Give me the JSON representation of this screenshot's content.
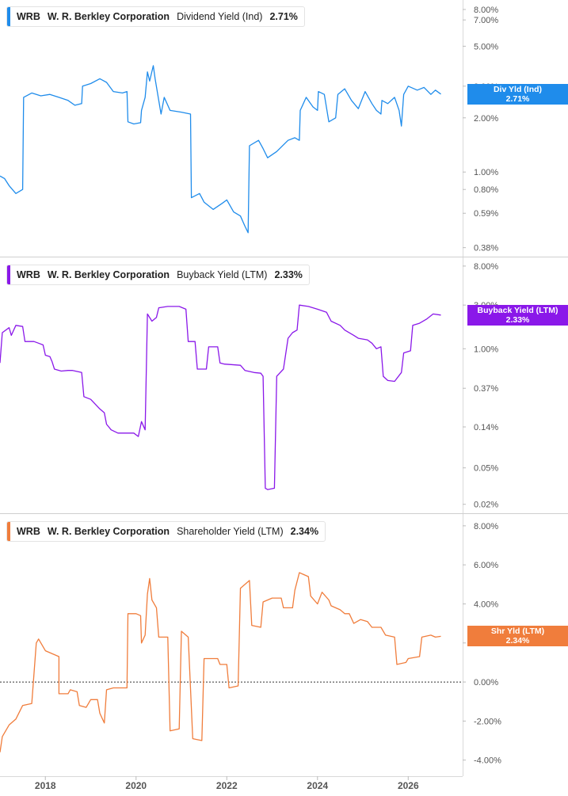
{
  "chart_data": [
    {
      "type": "line",
      "ticker": "WRB",
      "company": "W. R. Berkley Corporation",
      "metric": "Dividend Yield (Ind)",
      "last_value": "2.71%",
      "tag_label": "Div Yld (Ind)",
      "color": "#1f8ceb",
      "scale": "log",
      "ylim": [
        0.36,
        8.5
      ],
      "y_ticks": [
        {
          "v": 8.0,
          "label": "8.00%"
        },
        {
          "v": 7.0,
          "label": "7.00%"
        },
        {
          "v": 5.0,
          "label": "5.00%"
        },
        {
          "v": 3.0,
          "label": "3.00%"
        },
        {
          "v": 2.0,
          "label": "2.00%"
        },
        {
          "v": 1.0,
          "label": "1.00%"
        },
        {
          "v": 0.8,
          "label": "0.80%"
        },
        {
          "v": 0.59,
          "label": "0.59%"
        },
        {
          "v": 0.38,
          "label": "0.38%"
        }
      ],
      "points": [
        [
          2017.0,
          0.95
        ],
        [
          2017.1,
          0.92
        ],
        [
          2017.2,
          0.84
        ],
        [
          2017.35,
          0.76
        ],
        [
          2017.5,
          0.8
        ],
        [
          2017.52,
          2.6
        ],
        [
          2017.7,
          2.75
        ],
        [
          2017.9,
          2.65
        ],
        [
          2018.1,
          2.7
        ],
        [
          2018.3,
          2.6
        ],
        [
          2018.5,
          2.5
        ],
        [
          2018.65,
          2.35
        ],
        [
          2018.8,
          2.4
        ],
        [
          2018.82,
          3.0
        ],
        [
          2019.0,
          3.1
        ],
        [
          2019.2,
          3.3
        ],
        [
          2019.35,
          3.15
        ],
        [
          2019.5,
          2.8
        ],
        [
          2019.7,
          2.75
        ],
        [
          2019.8,
          2.8
        ],
        [
          2019.82,
          1.9
        ],
        [
          2019.95,
          1.85
        ],
        [
          2020.1,
          1.88
        ],
        [
          2020.12,
          2.2
        ],
        [
          2020.2,
          2.6
        ],
        [
          2020.25,
          3.6
        ],
        [
          2020.3,
          3.2
        ],
        [
          2020.38,
          3.9
        ],
        [
          2020.42,
          3.3
        ],
        [
          2020.5,
          2.5
        ],
        [
          2020.55,
          2.1
        ],
        [
          2020.62,
          2.6
        ],
        [
          2020.75,
          2.2
        ],
        [
          2021.0,
          2.15
        ],
        [
          2021.2,
          2.1
        ],
        [
          2021.22,
          0.72
        ],
        [
          2021.4,
          0.76
        ],
        [
          2021.5,
          0.68
        ],
        [
          2021.7,
          0.62
        ],
        [
          2021.9,
          0.67
        ],
        [
          2022.0,
          0.7
        ],
        [
          2022.15,
          0.6
        ],
        [
          2022.3,
          0.57
        ],
        [
          2022.4,
          0.5
        ],
        [
          2022.47,
          0.46
        ],
        [
          2022.5,
          1.4
        ],
        [
          2022.7,
          1.5
        ],
        [
          2022.8,
          1.35
        ],
        [
          2022.9,
          1.2
        ],
        [
          2023.1,
          1.3
        ],
        [
          2023.35,
          1.5
        ],
        [
          2023.5,
          1.55
        ],
        [
          2023.6,
          1.5
        ],
        [
          2023.62,
          2.2
        ],
        [
          2023.75,
          2.6
        ],
        [
          2023.9,
          2.3
        ],
        [
          2024.0,
          2.2
        ],
        [
          2024.02,
          2.8
        ],
        [
          2024.15,
          2.7
        ],
        [
          2024.25,
          1.9
        ],
        [
          2024.4,
          2.0
        ],
        [
          2024.45,
          2.7
        ],
        [
          2024.6,
          2.9
        ],
        [
          2024.75,
          2.5
        ],
        [
          2024.9,
          2.25
        ],
        [
          2025.05,
          2.8
        ],
        [
          2025.2,
          2.4
        ],
        [
          2025.3,
          2.2
        ],
        [
          2025.4,
          2.1
        ],
        [
          2025.42,
          2.5
        ],
        [
          2025.55,
          2.4
        ],
        [
          2025.7,
          2.6
        ],
        [
          2025.8,
          2.2
        ],
        [
          2025.85,
          1.8
        ],
        [
          2025.9,
          2.7
        ],
        [
          2026.0,
          3.0
        ],
        [
          2026.2,
          2.85
        ],
        [
          2026.35,
          2.95
        ],
        [
          2026.5,
          2.7
        ],
        [
          2026.6,
          2.85
        ],
        [
          2026.72,
          2.71
        ]
      ]
    },
    {
      "type": "line",
      "ticker": "WRB",
      "company": "W. R. Berkley Corporation",
      "metric": "Buyback Yield (LTM)",
      "last_value": "2.33%",
      "tag_label": "Buyback Yield (LTM)",
      "color": "#8a18e9",
      "scale": "log",
      "ylim": [
        0.018,
        9.0
      ],
      "y_ticks": [
        {
          "v": 8.0,
          "label": "8.00%"
        },
        {
          "v": 3.0,
          "label": "3.00%"
        },
        {
          "v": 1.0,
          "label": "1.00%"
        },
        {
          "v": 0.37,
          "label": "0.37%"
        },
        {
          "v": 0.14,
          "label": "0.14%"
        },
        {
          "v": 0.05,
          "label": "0.05%"
        },
        {
          "v": 0.02,
          "label": "0.02%"
        }
      ],
      "points": [
        [
          2017.0,
          0.7
        ],
        [
          2017.05,
          1.5
        ],
        [
          2017.2,
          1.7
        ],
        [
          2017.25,
          1.4
        ],
        [
          2017.35,
          1.8
        ],
        [
          2017.5,
          1.75
        ],
        [
          2017.55,
          1.2
        ],
        [
          2017.75,
          1.2
        ],
        [
          2017.85,
          1.15
        ],
        [
          2017.95,
          1.1
        ],
        [
          2018.0,
          0.85
        ],
        [
          2018.1,
          0.82
        ],
        [
          2018.15,
          0.72
        ],
        [
          2018.2,
          0.6
        ],
        [
          2018.35,
          0.57
        ],
        [
          2018.5,
          0.58
        ],
        [
          2018.6,
          0.58
        ],
        [
          2018.8,
          0.55
        ],
        [
          2018.85,
          0.3
        ],
        [
          2019.0,
          0.28
        ],
        [
          2019.2,
          0.22
        ],
        [
          2019.3,
          0.2
        ],
        [
          2019.35,
          0.15
        ],
        [
          2019.45,
          0.13
        ],
        [
          2019.6,
          0.12
        ],
        [
          2019.8,
          0.12
        ],
        [
          2019.95,
          0.12
        ],
        [
          2020.05,
          0.11
        ],
        [
          2020.12,
          0.16
        ],
        [
          2020.2,
          0.13
        ],
        [
          2020.25,
          2.4
        ],
        [
          2020.35,
          2.0
        ],
        [
          2020.45,
          2.2
        ],
        [
          2020.5,
          2.8
        ],
        [
          2020.7,
          2.9
        ],
        [
          2020.95,
          2.9
        ],
        [
          2021.1,
          2.7
        ],
        [
          2021.15,
          1.2
        ],
        [
          2021.3,
          1.2
        ],
        [
          2021.35,
          0.6
        ],
        [
          2021.55,
          0.6
        ],
        [
          2021.6,
          1.05
        ],
        [
          2021.8,
          1.05
        ],
        [
          2021.85,
          0.7
        ],
        [
          2021.95,
          0.68
        ],
        [
          2022.3,
          0.66
        ],
        [
          2022.4,
          0.58
        ],
        [
          2022.6,
          0.55
        ],
        [
          2022.75,
          0.54
        ],
        [
          2022.8,
          0.5
        ],
        [
          2022.85,
          0.03
        ],
        [
          2022.9,
          0.029
        ],
        [
          2023.05,
          0.03
        ],
        [
          2023.1,
          0.5
        ],
        [
          2023.25,
          0.6
        ],
        [
          2023.35,
          1.3
        ],
        [
          2023.45,
          1.5
        ],
        [
          2023.55,
          1.6
        ],
        [
          2023.6,
          3.0
        ],
        [
          2023.8,
          2.9
        ],
        [
          2024.0,
          2.7
        ],
        [
          2024.2,
          2.5
        ],
        [
          2024.3,
          2.0
        ],
        [
          2024.5,
          1.8
        ],
        [
          2024.6,
          1.6
        ],
        [
          2024.8,
          1.4
        ],
        [
          2024.9,
          1.3
        ],
        [
          2025.1,
          1.25
        ],
        [
          2025.2,
          1.15
        ],
        [
          2025.3,
          1.0
        ],
        [
          2025.4,
          1.05
        ],
        [
          2025.45,
          0.5
        ],
        [
          2025.55,
          0.45
        ],
        [
          2025.7,
          0.44
        ],
        [
          2025.85,
          0.55
        ],
        [
          2025.9,
          0.9
        ],
        [
          2026.05,
          0.95
        ],
        [
          2026.1,
          1.8
        ],
        [
          2026.25,
          1.9
        ],
        [
          2026.4,
          2.1
        ],
        [
          2026.55,
          2.4
        ],
        [
          2026.72,
          2.33
        ]
      ]
    },
    {
      "type": "line",
      "ticker": "WRB",
      "company": "W. R. Berkley Corporation",
      "metric": "Shareholder Yield (LTM)",
      "last_value": "2.34%",
      "tag_label": "Shr Yld (LTM)",
      "color": "#f07d3c",
      "scale": "linear",
      "ylim": [
        -4.5,
        8.4
      ],
      "zero_line": true,
      "y_ticks": [
        {
          "v": 8.0,
          "label": "8.00%"
        },
        {
          "v": 6.0,
          "label": "6.00%"
        },
        {
          "v": 4.0,
          "label": "4.00%"
        },
        {
          "v": 2.0,
          "label": "2.00%"
        },
        {
          "v": 0.0,
          "label": "0.00%"
        },
        {
          "v": -2.0,
          "label": "-2.00%"
        },
        {
          "v": -4.0,
          "label": "-4.00%"
        }
      ],
      "points": [
        [
          2017.0,
          -3.6
        ],
        [
          2017.05,
          -2.8
        ],
        [
          2017.2,
          -2.2
        ],
        [
          2017.35,
          -1.9
        ],
        [
          2017.5,
          -1.2
        ],
        [
          2017.7,
          -1.1
        ],
        [
          2017.8,
          2.0
        ],
        [
          2017.85,
          2.2
        ],
        [
          2018.0,
          1.6
        ],
        [
          2018.3,
          1.3
        ],
        [
          2018.3,
          -0.6
        ],
        [
          2018.5,
          -0.6
        ],
        [
          2018.55,
          -0.4
        ],
        [
          2018.7,
          -0.5
        ],
        [
          2018.75,
          -1.2
        ],
        [
          2018.9,
          -1.3
        ],
        [
          2019.0,
          -0.9
        ],
        [
          2019.15,
          -0.9
        ],
        [
          2019.2,
          -1.6
        ],
        [
          2019.3,
          -2.1
        ],
        [
          2019.35,
          -0.4
        ],
        [
          2019.5,
          -0.3
        ],
        [
          2019.6,
          -0.3
        ],
        [
          2019.8,
          -0.3
        ],
        [
          2019.82,
          3.5
        ],
        [
          2020.0,
          3.5
        ],
        [
          2020.1,
          3.4
        ],
        [
          2020.12,
          2.0
        ],
        [
          2020.2,
          2.4
        ],
        [
          2020.25,
          4.5
        ],
        [
          2020.3,
          5.3
        ],
        [
          2020.35,
          4.2
        ],
        [
          2020.45,
          3.8
        ],
        [
          2020.5,
          2.3
        ],
        [
          2020.7,
          2.3
        ],
        [
          2020.75,
          -2.5
        ],
        [
          2020.95,
          -2.4
        ],
        [
          2021.0,
          2.6
        ],
        [
          2021.15,
          2.3
        ],
        [
          2021.25,
          -2.9
        ],
        [
          2021.45,
          -3.0
        ],
        [
          2021.5,
          1.2
        ],
        [
          2021.8,
          1.2
        ],
        [
          2021.85,
          0.9
        ],
        [
          2022.0,
          0.9
        ],
        [
          2022.05,
          -0.3
        ],
        [
          2022.25,
          -0.2
        ],
        [
          2022.3,
          4.8
        ],
        [
          2022.5,
          5.2
        ],
        [
          2022.55,
          2.9
        ],
        [
          2022.75,
          2.8
        ],
        [
          2022.8,
          4.1
        ],
        [
          2023.0,
          4.3
        ],
        [
          2023.2,
          4.3
        ],
        [
          2023.25,
          3.8
        ],
        [
          2023.45,
          3.8
        ],
        [
          2023.5,
          4.7
        ],
        [
          2023.6,
          5.6
        ],
        [
          2023.8,
          5.4
        ],
        [
          2023.85,
          4.4
        ],
        [
          2024.0,
          4.0
        ],
        [
          2024.1,
          4.6
        ],
        [
          2024.25,
          4.2
        ],
        [
          2024.3,
          3.9
        ],
        [
          2024.5,
          3.7
        ],
        [
          2024.6,
          3.5
        ],
        [
          2024.7,
          3.5
        ],
        [
          2024.8,
          3.0
        ],
        [
          2024.95,
          3.2
        ],
        [
          2025.1,
          3.1
        ],
        [
          2025.2,
          2.8
        ],
        [
          2025.4,
          2.8
        ],
        [
          2025.5,
          2.4
        ],
        [
          2025.7,
          2.3
        ],
        [
          2025.75,
          0.9
        ],
        [
          2025.95,
          1.0
        ],
        [
          2026.0,
          1.2
        ],
        [
          2026.25,
          1.3
        ],
        [
          2026.3,
          2.3
        ],
        [
          2026.5,
          2.4
        ],
        [
          2026.6,
          2.3
        ],
        [
          2026.72,
          2.34
        ]
      ]
    }
  ],
  "x_axis": {
    "range": [
      2017.0,
      2027.2
    ],
    "ticks": [
      {
        "v": 2018,
        "label": "2018"
      },
      {
        "v": 2020,
        "label": "2020"
      },
      {
        "v": 2022,
        "label": "2022"
      },
      {
        "v": 2024,
        "label": "2024"
      },
      {
        "v": 2026,
        "label": "2026"
      }
    ]
  }
}
